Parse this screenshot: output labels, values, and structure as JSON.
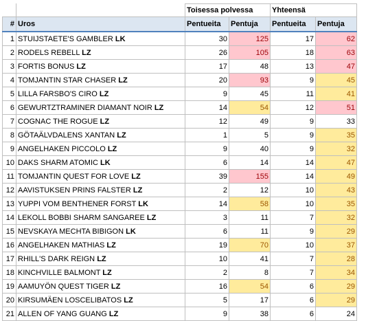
{
  "headers": {
    "group1": "Toisessa polvessa",
    "group2": "Yhteensä",
    "index": "#",
    "name": "Uros",
    "g1_col1": "Pentueita",
    "g1_col2": "Pentuja",
    "g2_col1": "Pentueita",
    "g2_col2": "Pentuja"
  },
  "rows": [
    {
      "n": "1",
      "name": "STUIJSTAETE'S GAMBLER",
      "tag": "LK",
      "a": "30",
      "b": "125",
      "b_hl": "pink",
      "c": "17",
      "d": "62",
      "d_hl": "pink"
    },
    {
      "n": "2",
      "name": "RODELS REBELL",
      "tag": "LZ",
      "a": "26",
      "b": "105",
      "b_hl": "pink",
      "c": "18",
      "d": "63",
      "d_hl": "pink"
    },
    {
      "n": "3",
      "name": "FORTIS BONUS",
      "tag": "LZ",
      "a": "17",
      "b": "48",
      "b_hl": "",
      "c": "13",
      "d": "47",
      "d_hl": "pink"
    },
    {
      "n": "4",
      "name": "TOMJANTIN STAR CHASER",
      "tag": "LZ",
      "a": "20",
      "b": "93",
      "b_hl": "pink",
      "c": "9",
      "d": "45",
      "d_hl": "yellow"
    },
    {
      "n": "5",
      "name": "LILLA FARSBO'S CIRO",
      "tag": "LZ",
      "a": "9",
      "b": "45",
      "b_hl": "",
      "c": "11",
      "d": "41",
      "d_hl": "yellow"
    },
    {
      "n": "6",
      "name": "GEWURTZTRAMINER DIAMANT NOIR",
      "tag": "LZ",
      "a": "14",
      "b": "54",
      "b_hl": "yellow",
      "c": "12",
      "d": "51",
      "d_hl": "pink"
    },
    {
      "n": "7",
      "name": "COGNAC THE ROGUE",
      "tag": "LZ",
      "a": "12",
      "b": "49",
      "b_hl": "",
      "c": "9",
      "d": "33",
      "d_hl": ""
    },
    {
      "n": "8",
      "name": "GÖTAÄLVDALENS XANTAN",
      "tag": "LZ",
      "a": "1",
      "b": "5",
      "b_hl": "",
      "c": "9",
      "d": "35",
      "d_hl": "yellow"
    },
    {
      "n": "9",
      "name": "ANGELHAKEN PICCOLO",
      "tag": "LZ",
      "a": "9",
      "b": "40",
      "b_hl": "",
      "c": "9",
      "d": "32",
      "d_hl": "yellow"
    },
    {
      "n": "10",
      "name": "DAKS SHARM ATOMIC",
      "tag": "LK",
      "a": "6",
      "b": "14",
      "b_hl": "",
      "c": "14",
      "d": "47",
      "d_hl": "yellow"
    },
    {
      "n": "11",
      "name": "TOMJANTIN QUEST FOR LOVE",
      "tag": "LZ",
      "a": "39",
      "b": "155",
      "b_hl": "pink",
      "c": "14",
      "d": "49",
      "d_hl": "yellow"
    },
    {
      "n": "12",
      "name": "AAVISTUKSEN PRINS FALSTER",
      "tag": "LZ",
      "a": "2",
      "b": "12",
      "b_hl": "",
      "c": "10",
      "d": "43",
      "d_hl": "yellow"
    },
    {
      "n": "13",
      "name": "YUPPI VOM BENTHENER FORST",
      "tag": "LK",
      "a": "14",
      "b": "58",
      "b_hl": "yellow",
      "c": "10",
      "d": "35",
      "d_hl": "yellow"
    },
    {
      "n": "14",
      "name": "LEKOLL BOBBI SHARM SANGAREE",
      "tag": "LZ",
      "a": "3",
      "b": "11",
      "b_hl": "",
      "c": "7",
      "d": "32",
      "d_hl": "yellow"
    },
    {
      "n": "15",
      "name": "NEVSKAYA MECHTA BIBIGON",
      "tag": "LK",
      "a": "6",
      "b": "11",
      "b_hl": "",
      "c": "9",
      "d": "29",
      "d_hl": "yellow"
    },
    {
      "n": "16",
      "name": "ANGELHAKEN MATHIAS",
      "tag": "LZ",
      "a": "19",
      "b": "70",
      "b_hl": "yellow",
      "c": "10",
      "d": "37",
      "d_hl": "yellow"
    },
    {
      "n": "17",
      "name": "RHILL'S DARK REIGN",
      "tag": "LZ",
      "a": "10",
      "b": "41",
      "b_hl": "",
      "c": "7",
      "d": "28",
      "d_hl": "yellow"
    },
    {
      "n": "18",
      "name": "KINCHVILLE BALMONT",
      "tag": "LZ",
      "a": "2",
      "b": "8",
      "b_hl": "",
      "c": "7",
      "d": "34",
      "d_hl": "yellow"
    },
    {
      "n": "19",
      "name": "AAMUYÖN QUEST TIGER",
      "tag": "LZ",
      "a": "16",
      "b": "54",
      "b_hl": "yellow",
      "c": "6",
      "d": "29",
      "d_hl": "yellow"
    },
    {
      "n": "20",
      "name": "KIRSUMÄEN LOSCELIBATOS",
      "tag": "LZ",
      "a": "5",
      "b": "17",
      "b_hl": "",
      "c": "6",
      "d": "29",
      "d_hl": "yellow"
    },
    {
      "n": "21",
      "name": "ALLEN OF YANG GUANG",
      "tag": "LZ",
      "a": "9",
      "b": "38",
      "b_hl": "",
      "c": "6",
      "d": "24",
      "d_hl": ""
    }
  ]
}
